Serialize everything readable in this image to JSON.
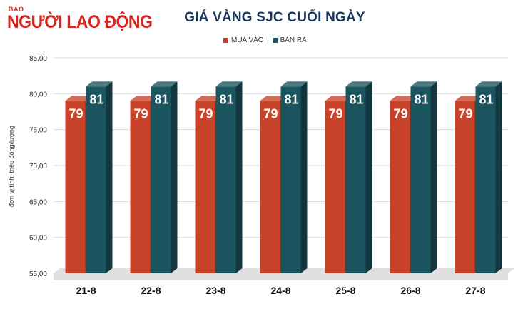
{
  "logo": {
    "small_text": "BÁO",
    "main_text": "NGƯỜI LAO ĐỘNG"
  },
  "colors": {
    "mua_vao": "#c8432a",
    "ban_ra": "#1b5560",
    "title": "#17375e",
    "brand": "#d7261e"
  },
  "chart_data": {
    "type": "bar",
    "title": "GIÁ VÀNG SJC CUỐI NGÀY",
    "ylabel": "đơn vị tính: triệu đồng/lượng",
    "xlabel": "",
    "categories": [
      "21-8",
      "22-8",
      "23-8",
      "24-8",
      "25-8",
      "26-8",
      "27-8"
    ],
    "series": [
      {
        "name": "MUA VÀO",
        "values": [
          79,
          79,
          79,
          79,
          79,
          79,
          79
        ],
        "labels": [
          "79",
          "79",
          "79",
          "79",
          "79",
          "79",
          "79"
        ]
      },
      {
        "name": "BÁN RA",
        "values": [
          81,
          81,
          81,
          81,
          81,
          81,
          81
        ],
        "labels": [
          "81",
          "81",
          "81",
          "81",
          "81",
          "81",
          "81"
        ]
      }
    ],
    "ylim": [
      55,
      85
    ],
    "yticks": [
      "55,00",
      "60,00",
      "65,00",
      "70,00",
      "75,00",
      "80,00",
      "85,00"
    ],
    "grid": true,
    "legend_position": "top"
  }
}
